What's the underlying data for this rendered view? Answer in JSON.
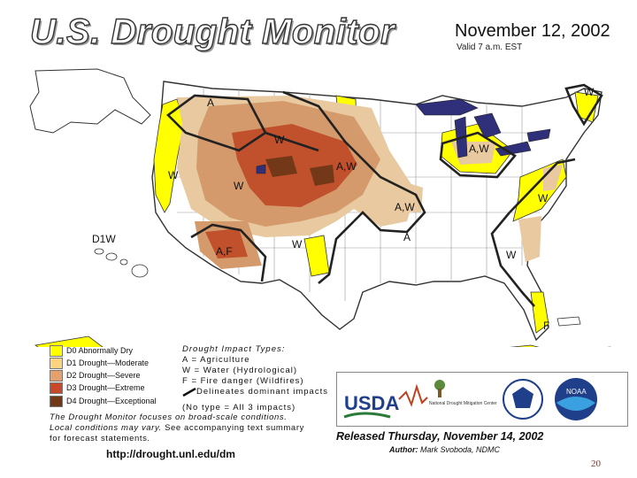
{
  "header": {
    "title": "U.S. Drought Monitor",
    "date": "November 12, 2002",
    "valid": "Valid 7 a.m. EST"
  },
  "legend": {
    "items": [
      {
        "code": "D0",
        "label": "D0 Abnormally Dry",
        "color": "#ffff00"
      },
      {
        "code": "D1",
        "label": "D1 Drought—Moderate",
        "color": "#fcd37f"
      },
      {
        "code": "D2",
        "label": "D2 Drought—Severe",
        "color": "#e5a06e"
      },
      {
        "code": "D3",
        "label": "D3 Drought—Extreme",
        "color": "#c8482a"
      },
      {
        "code": "D4",
        "label": "D4 Drought—Exceptional",
        "color": "#733818"
      }
    ]
  },
  "impacts": {
    "heading": "Drought Impact Types:",
    "a": "A = Agriculture",
    "w": "W = Water (Hydrological)",
    "f": "F = Fire danger (Wildfires)",
    "line": "Delineates dominant impacts",
    "none": "(No type = All 3 impacts)"
  },
  "map_labels": {
    "ne_w": "W",
    "nw_a": "A",
    "plains_w": "W",
    "ca_w": "W",
    "rockies_w": "W",
    "dakota_aw": "A,W",
    "lakes_aw": "A,W",
    "midwest_aw": "A,W",
    "mid_atlantic_w": "W",
    "texas_w": "W",
    "ok_a": "A",
    "se_w": "W",
    "sw_af": "A,F",
    "hawaii_d1w": "D1W",
    "florida_f": "F"
  },
  "footnote": {
    "line1": "The Drought Monitor focuses on broad-scale conditions.",
    "line2": "Local conditions may vary.",
    "line2b": " See accompanying text summary",
    "line3": "for forecast statements."
  },
  "url": "http://drought.unl.edu/dm",
  "released": "Released Thursday, November 14, 2002",
  "author": {
    "label": "Author:",
    "name": "Mark Svoboda, NDMC"
  },
  "logos": {
    "usda": "USDA",
    "ndmc": "National Drought Mitigation Center",
    "noaa": "NOAA"
  },
  "page_number": "20"
}
